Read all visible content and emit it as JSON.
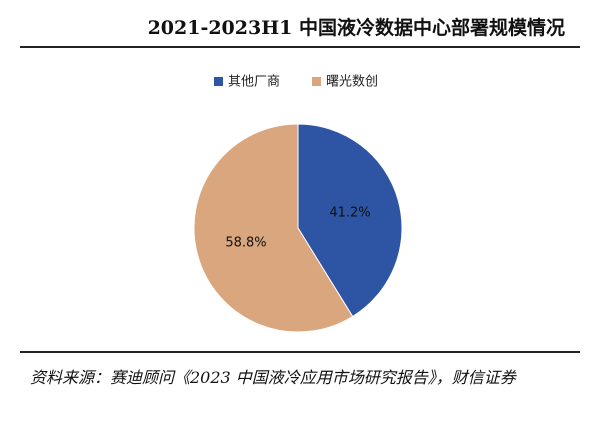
{
  "chart_data": {
    "type": "pie",
    "title": "2021-2023H1 中国液冷数据中心部署规模情况",
    "categories": [
      "其他厂商",
      "曙光数创"
    ],
    "values": [
      41.2,
      58.8
    ],
    "value_labels": [
      "41.2%",
      "58.8%"
    ],
    "colors": [
      "#2e54a4",
      "#d9a67e"
    ],
    "source": "资料来源：赛迪顾问《2023 中国液冷应用市场研究报告》，财信证券"
  }
}
